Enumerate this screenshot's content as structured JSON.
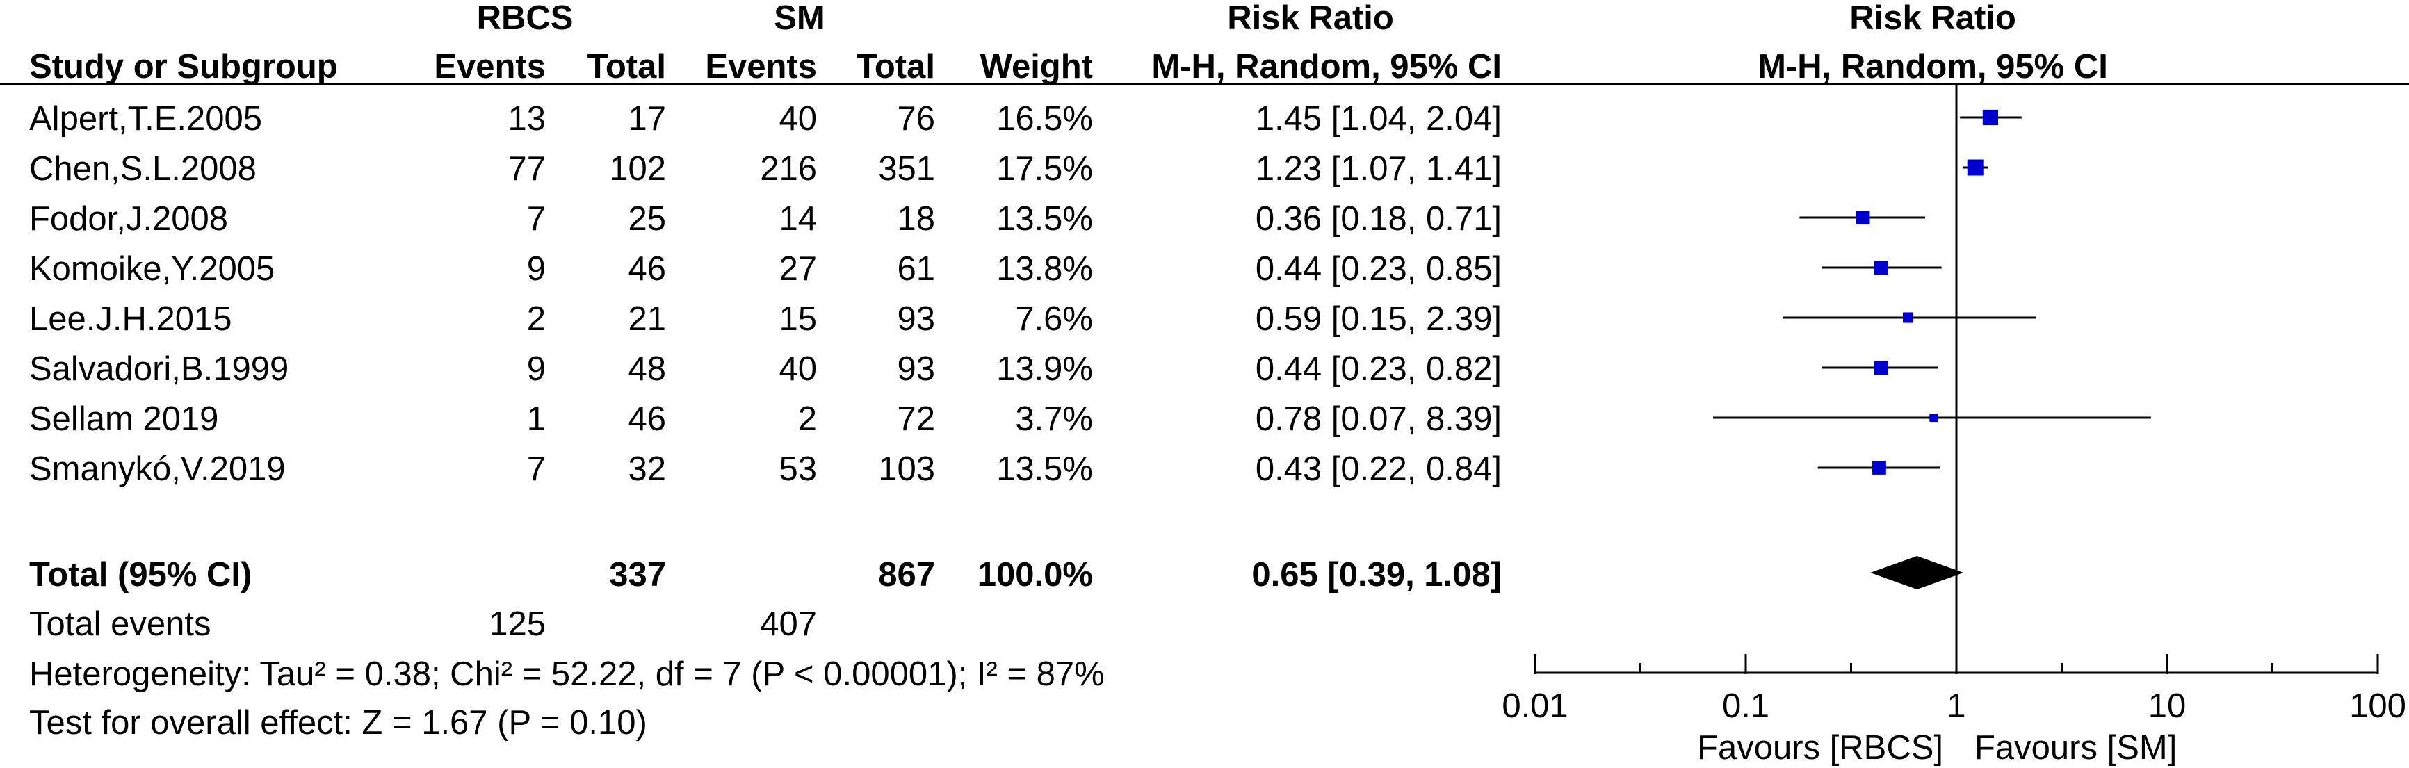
{
  "header": {
    "group1": "RBCS",
    "group2": "SM",
    "risk_ratio_left": "Risk Ratio",
    "risk_ratio_right": "Risk Ratio",
    "study_col": "Study or Subgroup",
    "events1": "Events",
    "total1": "Total",
    "events2": "Events",
    "total2": "Total",
    "weight": "Weight",
    "method_left": "M-H, Random, 95% CI",
    "method_right": "M-H, Random, 95% CI"
  },
  "studies": [
    {
      "name": "Alpert,T.E.2005",
      "e1": "13",
      "n1": "17",
      "e2": "40",
      "n2": "76",
      "weight": "16.5%",
      "ci": "1.45 [1.04, 2.04]"
    },
    {
      "name": "Chen,S.L.2008",
      "e1": "77",
      "n1": "102",
      "e2": "216",
      "n2": "351",
      "weight": "17.5%",
      "ci": "1.23 [1.07, 1.41]"
    },
    {
      "name": "Fodor,J.2008",
      "e1": "7",
      "n1": "25",
      "e2": "14",
      "n2": "18",
      "weight": "13.5%",
      "ci": "0.36 [0.18, 0.71]"
    },
    {
      "name": "Komoike,Y.2005",
      "e1": "9",
      "n1": "46",
      "e2": "27",
      "n2": "61",
      "weight": "13.8%",
      "ci": "0.44 [0.23, 0.85]"
    },
    {
      "name": "Lee.J.H.2015",
      "e1": "2",
      "n1": "21",
      "e2": "15",
      "n2": "93",
      "weight": "7.6%",
      "ci": "0.59 [0.15, 2.39]"
    },
    {
      "name": "Salvadori,B.1999",
      "e1": "9",
      "n1": "48",
      "e2": "40",
      "n2": "93",
      "weight": "13.9%",
      "ci": "0.44 [0.23, 0.82]"
    },
    {
      "name": "Sellam 2019",
      "e1": "1",
      "n1": "46",
      "e2": "2",
      "n2": "72",
      "weight": "3.7%",
      "ci": "0.78 [0.07, 8.39]"
    },
    {
      "name": "Smanykó,V.2019",
      "e1": "7",
      "n1": "32",
      "e2": "53",
      "n2": "103",
      "weight": "13.5%",
      "ci": "0.43 [0.22, 0.84]"
    }
  ],
  "total": {
    "label": "Total (95% CI)",
    "n1": "337",
    "n2": "867",
    "weight": "100.0%",
    "ci": "0.65 [0.39, 1.08]"
  },
  "total_events": {
    "label": "Total events",
    "e1": "125",
    "e2": "407"
  },
  "heterogeneity": "Heterogeneity: Tau² = 0.38; Chi² = 52.22, df = 7 (P < 0.00001); I² = 87%",
  "overall_effect": "Test for overall effect: Z = 1.67 (P = 0.10)",
  "axis_labels": {
    "favours_left": "Favours [RBCS]",
    "favours_right": "Favours [SM]"
  },
  "colors": {
    "marker": "#0000cc",
    "diamond": "#000000",
    "line": "#000000"
  },
  "chart_data": {
    "type": "forest",
    "x_scale": "log",
    "xlim": [
      0.01,
      100
    ],
    "ticks": [
      0.01,
      0.1,
      1,
      10,
      100
    ],
    "tick_labels": [
      "0.01",
      "0.1",
      "1",
      "10",
      "100"
    ],
    "null_line": 1,
    "points": [
      {
        "est": 1.45,
        "lo": 1.04,
        "hi": 2.04
      },
      {
        "est": 1.23,
        "lo": 1.07,
        "hi": 1.41
      },
      {
        "est": 0.36,
        "lo": 0.18,
        "hi": 0.71
      },
      {
        "est": 0.44,
        "lo": 0.23,
        "hi": 0.85
      },
      {
        "est": 0.59,
        "lo": 0.15,
        "hi": 2.39
      },
      {
        "est": 0.44,
        "lo": 0.23,
        "hi": 0.82
      },
      {
        "est": 0.78,
        "lo": 0.07,
        "hi": 8.39
      },
      {
        "est": 0.43,
        "lo": 0.22,
        "hi": 0.84
      }
    ],
    "pooled": {
      "est": 0.65,
      "lo": 0.39,
      "hi": 1.08
    }
  }
}
